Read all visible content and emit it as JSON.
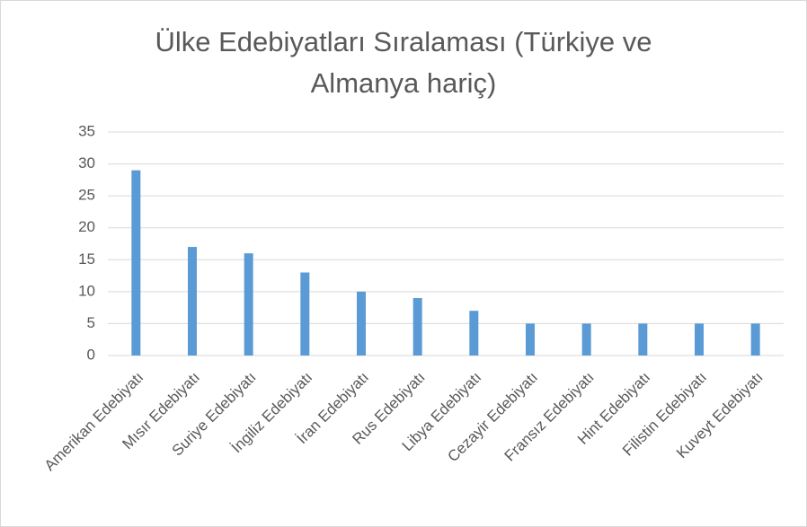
{
  "chart_data": {
    "type": "bar",
    "title": "Ülke Edebiyatları Sıralaması (Türkiye ve Almanya hariç)",
    "categories": [
      "Amerikan Edebiyatı",
      "Mısır Edebiyatı",
      "Suriye Edebiyatı",
      "İngiliz Edebiyatı",
      "İran Edebiyatı",
      "Rus Edebiyatı",
      "Libya Edebiyatı",
      "Cezayir Edebiyatı",
      "Fransız Edebiyatı",
      "Hint Edebiyatı",
      "Filistin Edebiyatı",
      "Kuveyt Edebiyatı"
    ],
    "values": [
      29,
      17,
      16,
      13,
      10,
      9,
      7,
      5,
      5,
      5,
      5,
      5
    ],
    "color": "#5b9bd5",
    "ylim": [
      0,
      35
    ],
    "yticks": [
      0,
      5,
      10,
      15,
      20,
      25,
      30,
      35
    ],
    "grid": true
  }
}
